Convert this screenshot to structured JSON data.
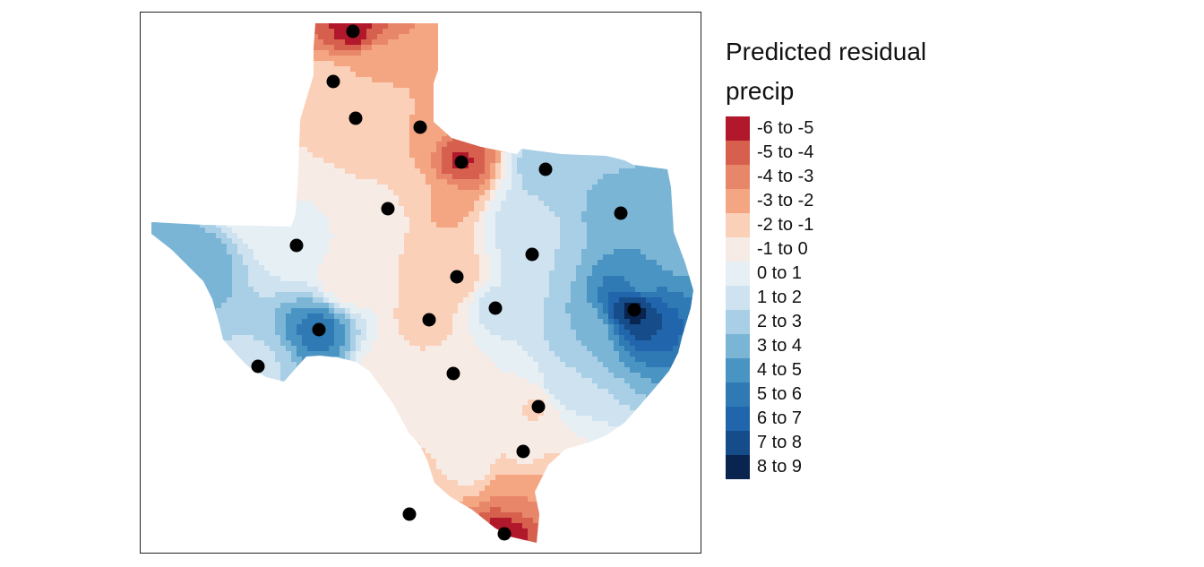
{
  "legend": {
    "title_line1": "Predicted residual",
    "title_line2": "precip",
    "bins": [
      {
        "label": "-6 to -5",
        "color": "#b2182b",
        "low": -6,
        "high": -5
      },
      {
        "label": "-5 to -4",
        "color": "#d6604d",
        "low": -5,
        "high": -4
      },
      {
        "label": "-4 to -3",
        "color": "#e8866a",
        "low": -4,
        "high": -3
      },
      {
        "label": "-3 to -2",
        "color": "#f4a582",
        "low": -3,
        "high": -2
      },
      {
        "label": "-2 to -1",
        "color": "#fbd0b9",
        "low": -2,
        "high": -1
      },
      {
        "label": "-1 to 0",
        "color": "#f7ebe5",
        "low": -1,
        "high": 0
      },
      {
        "label": "0 to 1",
        "color": "#e6eff4",
        "low": 0,
        "high": 1
      },
      {
        "label": "1 to 2",
        "color": "#cfe2f0",
        "low": 1,
        "high": 2
      },
      {
        "label": "2 to 3",
        "color": "#a8cfe5",
        "low": 2,
        "high": 3
      },
      {
        "label": "3 to 4",
        "color": "#7bb5d6",
        "low": 3,
        "high": 4
      },
      {
        "label": "4 to 5",
        "color": "#4a94c4",
        "low": 4,
        "high": 5
      },
      {
        "label": "5 to 6",
        "color": "#2f79b5",
        "low": 5,
        "high": 6
      },
      {
        "label": "6 to 7",
        "color": "#2166ac",
        "low": 6,
        "high": 7
      },
      {
        "label": "7 to 8",
        "color": "#164c8a",
        "low": 7,
        "high": 8
      },
      {
        "label": "8 to 9",
        "color": "#08244f",
        "low": 8,
        "high": 9
      }
    ]
  },
  "stations": [
    {
      "residual": -5.5
    },
    {
      "residual": -1.5
    },
    {
      "residual": -1.0
    },
    {
      "residual": -2.0
    },
    {
      "residual": -5.2
    },
    {
      "residual": 3.0
    },
    {
      "residual": -0.5
    },
    {
      "residual": 3.5
    },
    {
      "residual": 8.4
    },
    {
      "residual": 0.5
    },
    {
      "residual": 2.0
    },
    {
      "residual": -2.0
    },
    {
      "residual": 1.5
    },
    {
      "residual": -1.5
    },
    {
      "residual": 5.5
    },
    {
      "residual": -0.5
    },
    {
      "residual": -1.2
    },
    {
      "residual": -0.8
    },
    {
      "residual": 1.8
    },
    {
      "residual": -2.5
    },
    {
      "residual": -5.5
    }
  ]
}
